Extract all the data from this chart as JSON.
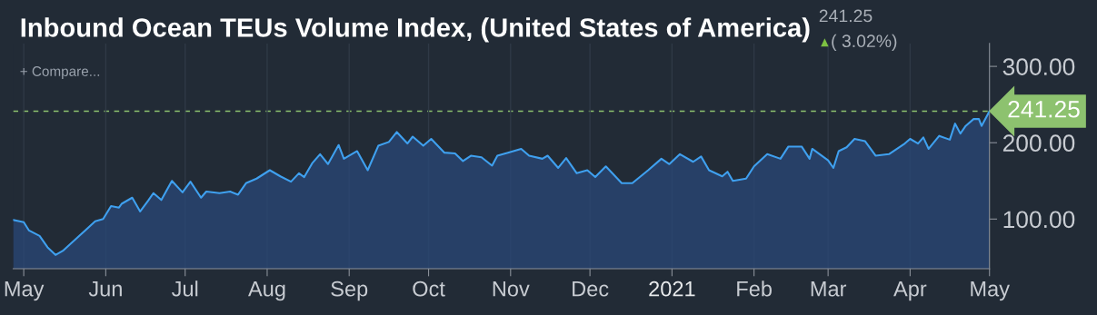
{
  "chart_data": {
    "type": "area",
    "title": "Inbound Ocean TEUs Volume Index, (United States of America)",
    "annotations": [
      "241.25",
      "( 3.02%)",
      "+ Compare..."
    ],
    "x": [
      "2020-04-27",
      "2020-05-01",
      "2020-05-03",
      "2020-05-07",
      "2020-05-10",
      "2020-05-13",
      "2020-05-16",
      "2020-05-22",
      "2020-05-28",
      "2020-05-31",
      "2020-06-03",
      "2020-06-06",
      "2020-06-07",
      "2020-06-11",
      "2020-06-14",
      "2020-06-17",
      "2020-06-19",
      "2020-06-22",
      "2020-06-26",
      "2020-06-30",
      "2020-07-03",
      "2020-07-07",
      "2020-07-09",
      "2020-07-14",
      "2020-07-18",
      "2020-07-21",
      "2020-07-24",
      "2020-07-28",
      "2020-08-02",
      "2020-08-06",
      "2020-08-10",
      "2020-08-13",
      "2020-08-15",
      "2020-08-18",
      "2020-08-21",
      "2020-08-24",
      "2020-08-28",
      "2020-08-30",
      "2020-09-04",
      "2020-09-08",
      "2020-09-12",
      "2020-09-16",
      "2020-09-19",
      "2020-09-23",
      "2020-09-25",
      "2020-09-29",
      "2020-10-02",
      "2020-10-07",
      "2020-10-11",
      "2020-10-14",
      "2020-10-17",
      "2020-10-21",
      "2020-10-25",
      "2020-10-27",
      "2020-10-31",
      "2020-11-05",
      "2020-11-08",
      "2020-11-13",
      "2020-11-15",
      "2020-11-19",
      "2020-11-22",
      "2020-11-26",
      "2020-11-30",
      "2020-12-03",
      "2020-12-07",
      "2020-12-13",
      "2020-12-17",
      "2020-12-23",
      "2020-12-28",
      "2020-12-31",
      "2021-01-04",
      "2021-01-09",
      "2021-01-12",
      "2021-01-15",
      "2021-01-20",
      "2021-01-22",
      "2021-01-24",
      "2021-01-29",
      "2021-02-01",
      "2021-02-06",
      "2021-02-11",
      "2021-02-14",
      "2021-02-19",
      "2021-02-22",
      "2021-02-23",
      "2021-03-01",
      "2021-03-03",
      "2021-03-05",
      "2021-03-08",
      "2021-03-11",
      "2021-03-15",
      "2021-03-19",
      "2021-03-24",
      "2021-03-30",
      "2021-04-01",
      "2021-04-04",
      "2021-04-06",
      "2021-04-08",
      "2021-04-12",
      "2021-04-16",
      "2021-04-18",
      "2021-04-20",
      "2021-04-22",
      "2021-04-25",
      "2021-04-27",
      "2021-04-28",
      "2021-05-01"
    ],
    "series": [
      {
        "color": "#3fa0ef",
        "values": [
          99,
          96,
          85,
          78,
          63,
          53,
          59,
          78,
          97,
          100,
          117,
          115,
          120,
          128,
          110,
          124,
          134,
          125,
          150,
          135,
          149,
          128,
          136,
          134,
          136,
          132,
          147,
          153,
          164,
          156,
          149,
          160,
          155,
          173,
          185,
          172,
          197,
          179,
          189,
          164,
          196,
          201,
          214,
          199,
          208,
          196,
          205,
          187,
          186,
          176,
          183,
          181,
          170,
          183,
          187,
          192,
          183,
          179,
          183,
          167,
          180,
          160,
          164,
          155,
          169,
          147,
          147,
          164,
          179,
          172,
          185,
          175,
          182,
          164,
          156,
          162,
          150,
          153,
          169,
          185,
          179,
          195,
          195,
          179,
          192,
          177,
          167,
          189,
          194,
          205,
          202,
          183,
          185,
          199,
          205,
          199,
          207,
          192,
          209,
          204,
          225,
          212,
          222,
          231,
          231,
          222,
          241.25
        ]
      }
    ],
    "xlim": [
      "2020-04-27",
      "2021-05-01"
    ],
    "xticks": [
      {
        "value": "2020-05-01",
        "label": "May"
      },
      {
        "value": "2020-06-01",
        "label": "Jun"
      },
      {
        "value": "2020-07-01",
        "label": "Jul"
      },
      {
        "value": "2020-08-01",
        "label": "Aug"
      },
      {
        "value": "2020-09-01",
        "label": "Sep"
      },
      {
        "value": "2020-10-01",
        "label": "Oct"
      },
      {
        "value": "2020-11-01",
        "label": "Nov"
      },
      {
        "value": "2020-12-01",
        "label": "Dec"
      },
      {
        "value": "2021-01-01",
        "label": "2021"
      },
      {
        "value": "2021-02-01",
        "label": "Feb"
      },
      {
        "value": "2021-03-01",
        "label": "Mar"
      },
      {
        "value": "2021-04-01",
        "label": "Apr"
      },
      {
        "value": "2021-05-01",
        "label": "May"
      }
    ],
    "ylim": [
      35,
      330
    ],
    "yticks": [
      {
        "value": 100,
        "label": "100.00"
      },
      {
        "value": 200,
        "label": "200.00"
      },
      {
        "value": 300,
        "label": "300.00"
      }
    ],
    "ref_lines": [
      {
        "axis": "y",
        "value": 241.25,
        "label": "241.25",
        "color": "#8dc26f",
        "line_style": "dashed"
      }
    ],
    "grid": "x"
  }
}
